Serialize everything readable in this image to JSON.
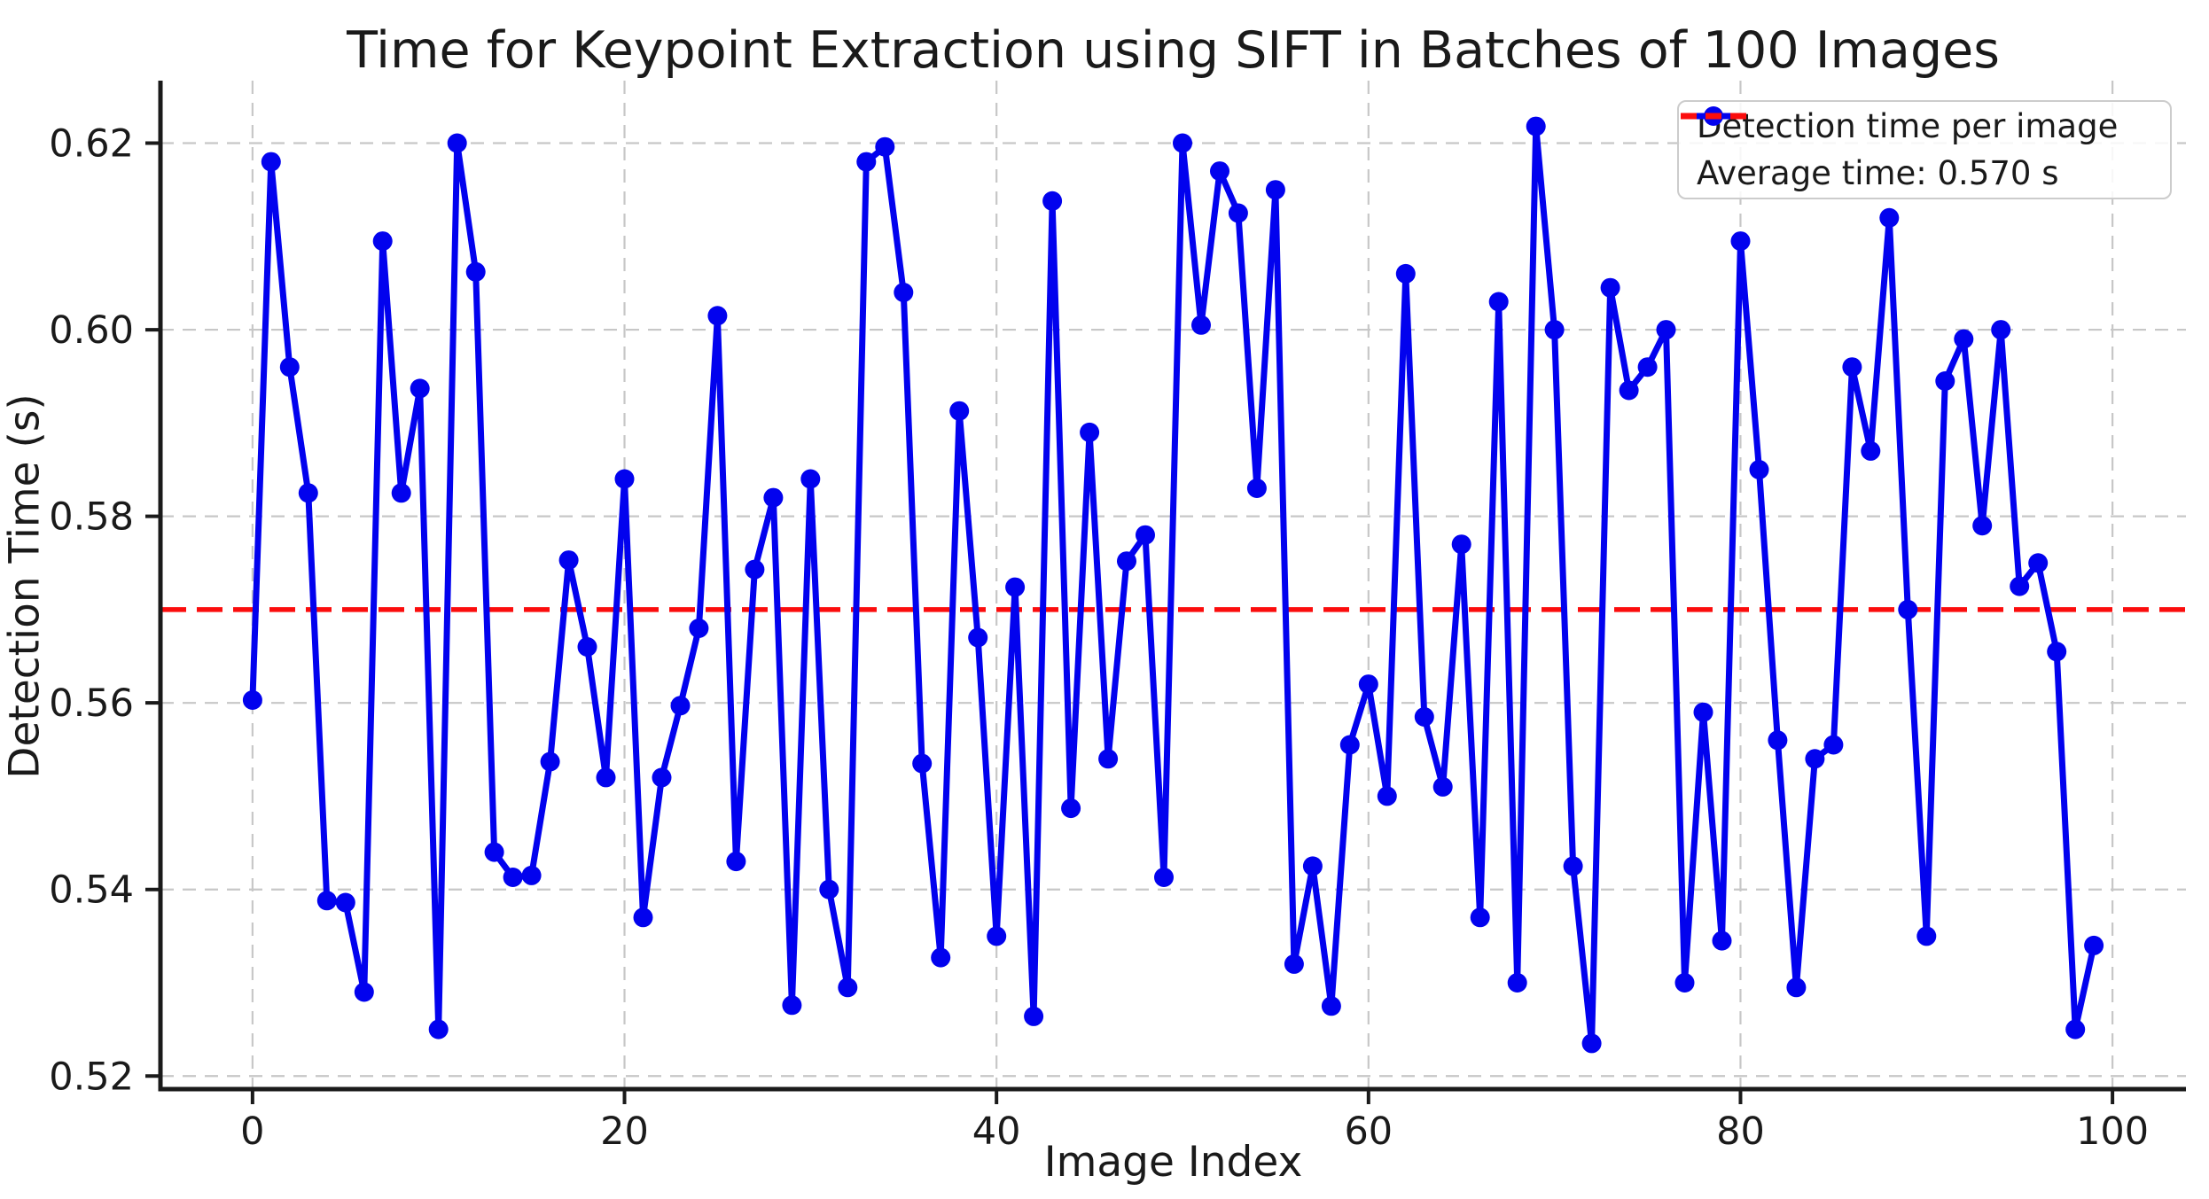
{
  "figure_title": "Time for Keypoint Extraction using SIFT in Batches of 100 Images",
  "colors": {
    "series_blue": "#0202ee",
    "average_red": "#fb0d0d",
    "grid_gray": "#c7c7c7",
    "spine_black": "#1a1a1a",
    "text_dark": "#1a1a1a",
    "legend_border": "#cccccc"
  },
  "legend": {
    "items": [
      {
        "label": "Detection time per image",
        "glyph": "blue-line-with-circle-marker"
      },
      {
        "label": "Average time: 0.570 s",
        "glyph": "red-dashed-line"
      }
    ]
  },
  "chart_data": {
    "type": "line",
    "title": "Time for Keypoint Extraction using SIFT in Batches of 100 Images",
    "xlabel": "Image Index",
    "ylabel": "Detection Time (s)",
    "grid": true,
    "legend_position": "upper right",
    "xlim": [
      -4.95,
      103.95
    ],
    "ylim": [
      0.5186,
      0.6267
    ],
    "xticks": [
      0,
      20,
      40,
      60,
      80,
      100
    ],
    "xtick_labels": [
      "0",
      "20",
      "40",
      "60",
      "80",
      "100"
    ],
    "yticks": [
      0.52,
      0.54,
      0.56,
      0.58,
      0.6,
      0.62
    ],
    "ytick_labels": [
      "0.52",
      "0.54",
      "0.56",
      "0.58",
      "0.60",
      "0.62"
    ],
    "average_line": {
      "value": 0.57,
      "label": "Average time: 0.570 s",
      "style": "dashed"
    },
    "x": [
      0,
      1,
      2,
      3,
      4,
      5,
      6,
      7,
      8,
      9,
      10,
      11,
      12,
      13,
      14,
      15,
      16,
      17,
      18,
      19,
      20,
      21,
      22,
      23,
      24,
      25,
      26,
      27,
      28,
      29,
      30,
      31,
      32,
      33,
      34,
      35,
      36,
      37,
      38,
      39,
      40,
      41,
      42,
      43,
      44,
      45,
      46,
      47,
      48,
      49,
      50,
      51,
      52,
      53,
      54,
      55,
      56,
      57,
      58,
      59,
      60,
      61,
      62,
      63,
      64,
      65,
      66,
      67,
      68,
      69,
      70,
      71,
      72,
      73,
      74,
      75,
      76,
      77,
      78,
      79,
      80,
      81,
      82,
      83,
      84,
      85,
      86,
      87,
      88,
      89,
      90,
      91,
      92,
      93,
      94,
      95,
      96,
      97,
      98,
      99
    ],
    "series": [
      {
        "name": "Detection time per image",
        "marker": "circle",
        "values": [
          0.5603,
          0.618,
          0.596,
          0.5825,
          0.5388,
          0.5386,
          0.529,
          0.6095,
          0.5825,
          0.5937,
          0.525,
          0.62,
          0.6062,
          0.544,
          0.5413,
          0.5415,
          0.5537,
          0.5753,
          0.566,
          0.552,
          0.584,
          0.537,
          0.552,
          0.5597,
          0.568,
          0.6015,
          0.543,
          0.5743,
          0.582,
          0.5276,
          0.584,
          0.54,
          0.5295,
          0.618,
          0.6196,
          0.604,
          0.5535,
          0.5327,
          0.5913,
          0.567,
          0.535,
          0.5724,
          0.5264,
          0.6138,
          0.5487,
          0.589,
          0.554,
          0.5752,
          0.578,
          0.5413,
          0.62,
          0.6005,
          0.617,
          0.6125,
          0.583,
          0.615,
          0.532,
          0.5425,
          0.5275,
          0.5555,
          0.562,
          0.55,
          0.606,
          0.5585,
          0.551,
          0.577,
          0.537,
          0.603,
          0.53,
          0.6218,
          0.6,
          0.5425,
          0.5235,
          0.6045,
          0.5935,
          0.596,
          0.6,
          0.53,
          0.559,
          0.5345,
          0.6095,
          0.585,
          0.556,
          0.5295,
          0.554,
          0.5555,
          0.596,
          0.587,
          0.612,
          0.57,
          0.535,
          0.5945,
          0.599,
          0.579,
          0.6,
          0.5725,
          0.575,
          0.5655,
          0.525,
          0.534
        ]
      }
    ]
  }
}
